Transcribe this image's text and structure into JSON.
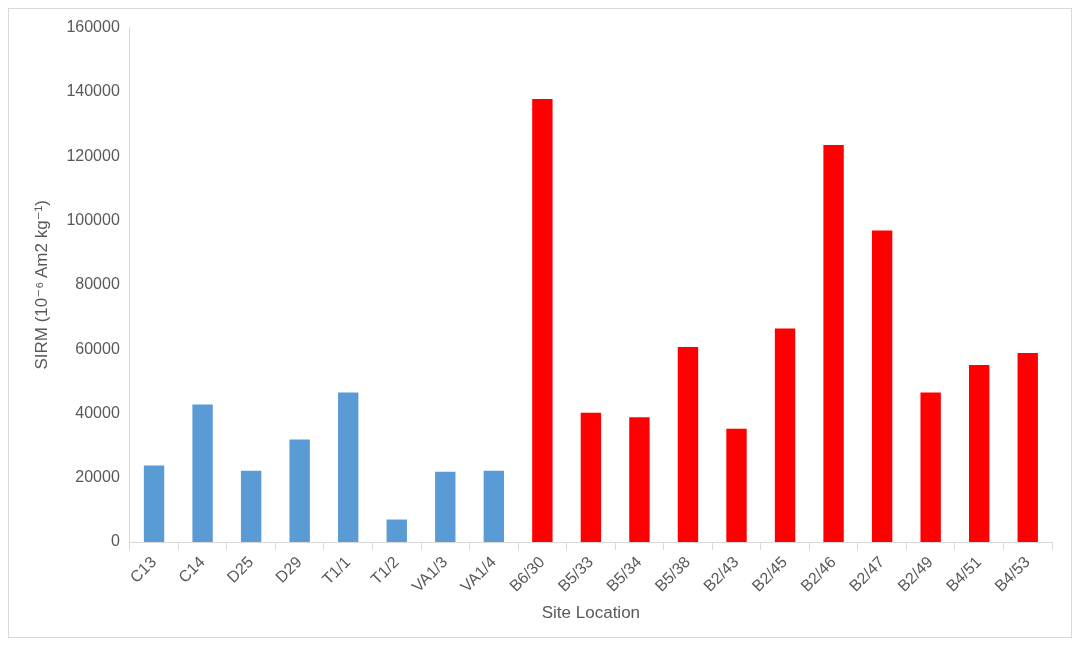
{
  "chart_data": {
    "type": "bar",
    "xlabel": "Site Location",
    "ylabel": "SIRM (10⁻⁶ Am2 kg⁻¹)",
    "categories": [
      "C13",
      "C14",
      "D25",
      "D29",
      "T1/1",
      "T1/2",
      "VA1/3",
      "VA1/4",
      "B6/30",
      "B5/33",
      "B5/34",
      "B5/38",
      "B2/43",
      "B2/45",
      "B2/46",
      "B2/47",
      "B2/49",
      "B4/51",
      "B4/53"
    ],
    "values": [
      23800,
      42800,
      22200,
      31900,
      46500,
      7000,
      21900,
      22200,
      137800,
      40200,
      38800,
      60700,
      35200,
      66400,
      123500,
      96900,
      46500,
      55100,
      58800
    ],
    "colors": [
      "#5b9bd5",
      "#5b9bd5",
      "#5b9bd5",
      "#5b9bd5",
      "#5b9bd5",
      "#5b9bd5",
      "#5b9bd5",
      "#5b9bd5",
      "#ff0000",
      "#ff0000",
      "#ff0000",
      "#ff0000",
      "#ff0000",
      "#ff0000",
      "#ff0000",
      "#ff0000",
      "#ff0000",
      "#ff0000",
      "#ff0000"
    ],
    "ylim": [
      0,
      160000
    ],
    "yticks": [
      0,
      20000,
      40000,
      60000,
      80000,
      100000,
      120000,
      140000,
      160000
    ],
    "grid": false,
    "legend": false
  }
}
